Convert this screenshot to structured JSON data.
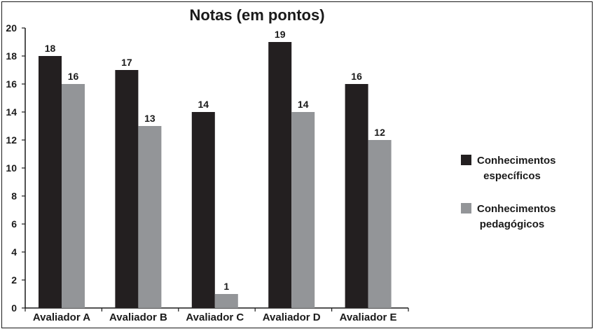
{
  "chart_data": {
    "type": "bar",
    "title": "Notas (em pontos)",
    "categories": [
      "Avaliador A",
      "Avaliador B",
      "Avaliador C",
      "Avaliador D",
      "Avaliador E"
    ],
    "series": [
      {
        "name_lines": [
          "Conhecimentos",
          "específicos"
        ],
        "values": [
          18,
          17,
          14,
          19,
          16
        ],
        "color": "#231f20"
      },
      {
        "name_lines": [
          "Conhecimentos",
          "pedagógicos"
        ],
        "values": [
          16,
          13,
          1,
          14,
          12
        ],
        "color": "#939598"
      }
    ],
    "ylim": [
      0,
      20
    ],
    "yticks": [
      "0",
      "2",
      "4",
      "6",
      "8",
      "10",
      "12",
      "14",
      "16",
      "18",
      "20"
    ],
    "grid": false,
    "legend_position": "right"
  }
}
